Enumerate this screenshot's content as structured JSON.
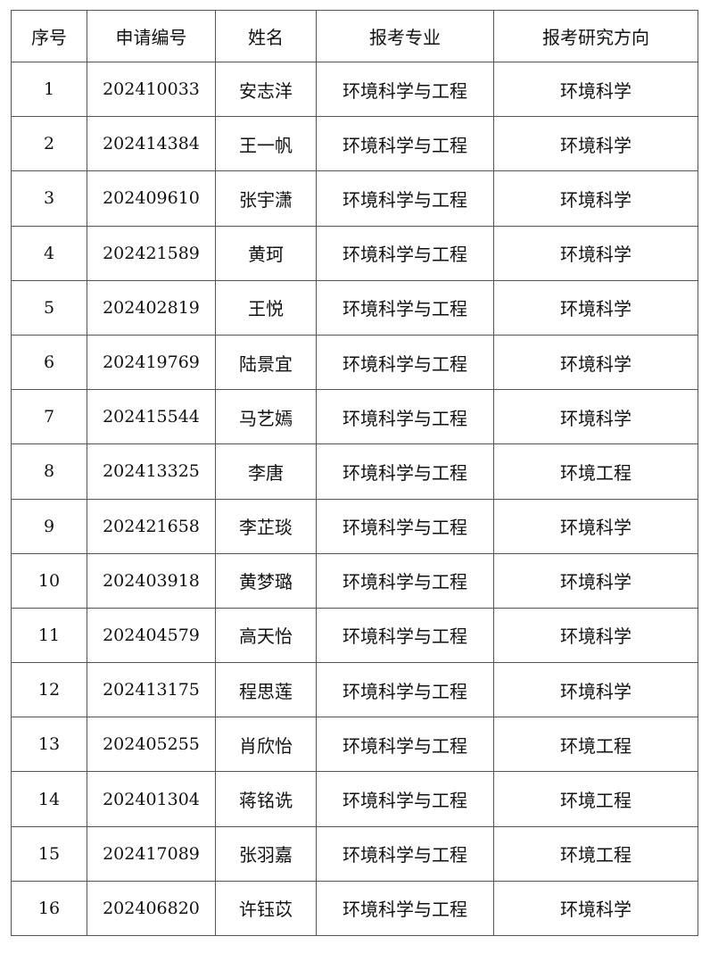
{
  "table": {
    "headers": [
      "序号",
      "申请编号",
      "姓名",
      "报考专业",
      "报考研究方向"
    ],
    "rows": [
      [
        "1",
        "202410033",
        "安志洋",
        "环境科学与工程",
        "环境科学"
      ],
      [
        "2",
        "202414384",
        "王一帆",
        "环境科学与工程",
        "环境科学"
      ],
      [
        "3",
        "202409610",
        "张宇潇",
        "环境科学与工程",
        "环境科学"
      ],
      [
        "4",
        "202421589",
        "黄珂",
        "环境科学与工程",
        "环境科学"
      ],
      [
        "5",
        "202402819",
        "王悦",
        "环境科学与工程",
        "环境科学"
      ],
      [
        "6",
        "202419769",
        "陆景宜",
        "环境科学与工程",
        "环境科学"
      ],
      [
        "7",
        "202415544",
        "马艺嫣",
        "环境科学与工程",
        "环境科学"
      ],
      [
        "8",
        "202413325",
        "李唐",
        "环境科学与工程",
        "环境工程"
      ],
      [
        "9",
        "202421658",
        "李芷琰",
        "环境科学与工程",
        "环境科学"
      ],
      [
        "10",
        "202403918",
        "黄梦璐",
        "环境科学与工程",
        "环境科学"
      ],
      [
        "11",
        "202404579",
        "高天怡",
        "环境科学与工程",
        "环境科学"
      ],
      [
        "12",
        "202413175",
        "程思莲",
        "环境科学与工程",
        "环境科学"
      ],
      [
        "13",
        "202405255",
        "肖欣怡",
        "环境科学与工程",
        "环境工程"
      ],
      [
        "14",
        "202401304",
        "蒋铭诜",
        "环境科学与工程",
        "环境工程"
      ],
      [
        "15",
        "202417089",
        "张羽嘉",
        "环境科学与工程",
        "环境工程"
      ],
      [
        "16",
        "202406820",
        "许钰苡",
        "环境科学与工程",
        "环境科学"
      ]
    ]
  }
}
